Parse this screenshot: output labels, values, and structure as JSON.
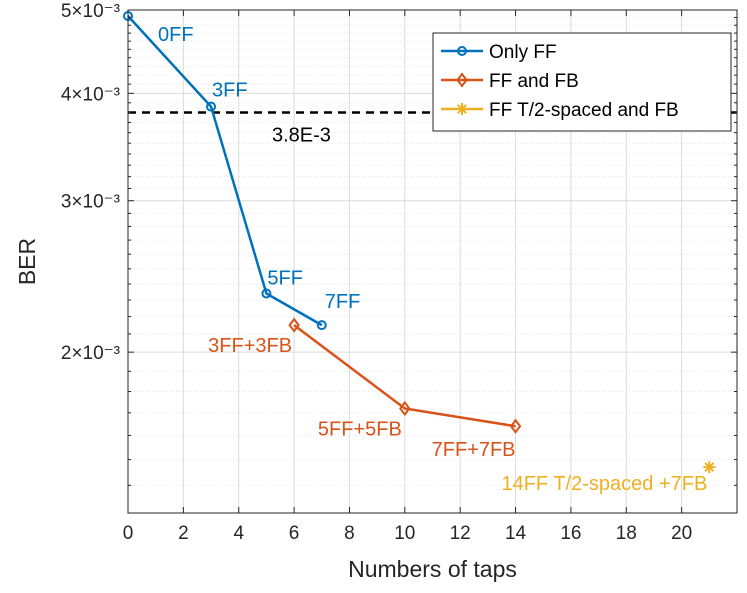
{
  "chart_data": {
    "type": "line",
    "title": "",
    "xlabel": "Numbers of taps",
    "ylabel": "BER",
    "y_scale": "log",
    "xlim": [
      0,
      22
    ],
    "ylim": [
      0.0013,
      0.005
    ],
    "grid": true,
    "x_ticks": [
      0,
      2,
      4,
      6,
      8,
      10,
      12,
      14,
      16,
      18,
      20
    ],
    "y_ticks": [
      {
        "value": 0.005,
        "label": "5×10⁻³"
      },
      {
        "value": 0.004,
        "label": "4×10⁻³"
      },
      {
        "value": 0.003,
        "label": "3×10⁻³"
      },
      {
        "value": 0.002,
        "label": "2×10⁻³"
      }
    ],
    "reference_line": {
      "value": 0.0038,
      "label": "3.8E-3",
      "color": "#000000",
      "style": "dashed"
    },
    "legend_position": "top-right",
    "series": [
      {
        "name": "Only FF",
        "color": "#0072BD",
        "marker": "circle",
        "points": [
          {
            "x": 0,
            "y": 0.00492,
            "label": "0FF"
          },
          {
            "x": 3,
            "y": 0.00386,
            "label": "3FF"
          },
          {
            "x": 5,
            "y": 0.00234,
            "label": "5FF"
          },
          {
            "x": 7,
            "y": 0.00215,
            "label": "7FF"
          }
        ]
      },
      {
        "name": "FF and FB",
        "color": "#D95319",
        "marker": "diamond",
        "points": [
          {
            "x": 6,
            "y": 0.00215,
            "label": "3FF+3FB"
          },
          {
            "x": 10,
            "y": 0.00172,
            "label": "5FF+5FB"
          },
          {
            "x": 14,
            "y": 0.00164,
            "label": "7FF+7FB"
          }
        ]
      },
      {
        "name": "FF T/2-spaced and FB",
        "color": "#EDB120",
        "marker": "asterisk",
        "points": [
          {
            "x": 21,
            "y": 0.00147,
            "label": "14FF T/2-spaced +7FB"
          }
        ]
      }
    ]
  }
}
